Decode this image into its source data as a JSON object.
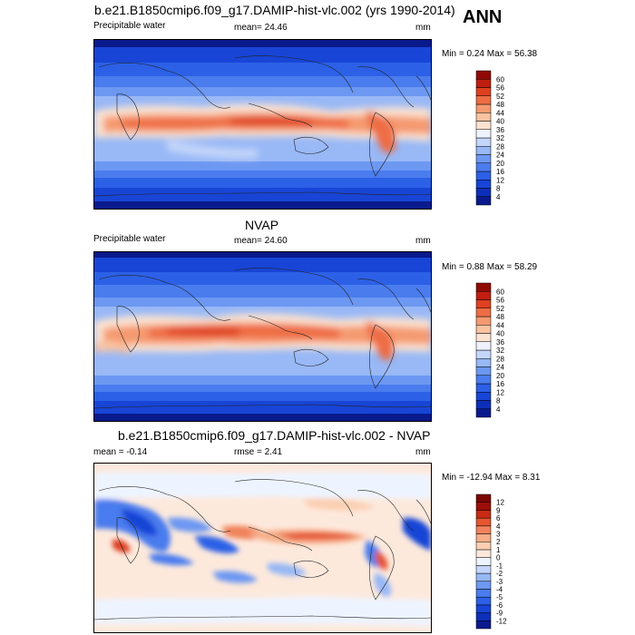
{
  "figure": {
    "season": "ANN"
  },
  "chart_data": [
    {
      "type": "heatmap",
      "title": "b.e21.B1850cmip6.f09_g17.DAMIP-hist-vlc.002 (yrs 1990-2014)",
      "variable": "Precipitable water",
      "units": "mm",
      "mean_label": "mean=  24.46",
      "minmax_label": "Min =   0.24 Max =  56.38",
      "mean": 24.46,
      "min": 0.24,
      "max": 56.38,
      "contour_levels": [
        4,
        8,
        12,
        16,
        20,
        24,
        28,
        32,
        36,
        40,
        44,
        48,
        52,
        56,
        60
      ],
      "colorbar_labels": [
        "4",
        "8",
        "12",
        "16",
        "20",
        "24",
        "28",
        "32",
        "36",
        "40",
        "44",
        "48",
        "52",
        "56",
        "60"
      ],
      "colors": [
        "#0a1a8c",
        "#0d2fb8",
        "#1845d6",
        "#2c60e6",
        "#4a7cee",
        "#6d98f2",
        "#98b8f6",
        "#c4d6fa",
        "#eef2ff",
        "#fbe3d2",
        "#f9c2a0",
        "#f59a70",
        "#ee6d45",
        "#de4020",
        "#c01e10",
        "#8f0a06"
      ]
    },
    {
      "type": "heatmap",
      "title": "NVAP",
      "variable": "Precipitable water",
      "units": "mm",
      "mean_label": "mean=  24.60",
      "minmax_label": "Min =   0.88 Max =  58.29",
      "mean": 24.6,
      "min": 0.88,
      "max": 58.29,
      "contour_levels": [
        4,
        8,
        12,
        16,
        20,
        24,
        28,
        32,
        36,
        40,
        44,
        48,
        52,
        56,
        60
      ],
      "colorbar_labels": [
        "4",
        "8",
        "12",
        "16",
        "20",
        "24",
        "28",
        "32",
        "36",
        "40",
        "44",
        "48",
        "52",
        "56",
        "60"
      ],
      "colors": [
        "#0a1a8c",
        "#0d2fb8",
        "#1845d6",
        "#2c60e6",
        "#4a7cee",
        "#6d98f2",
        "#98b8f6",
        "#c4d6fa",
        "#eef2ff",
        "#fbe3d2",
        "#f9c2a0",
        "#f59a70",
        "#ee6d45",
        "#de4020",
        "#c01e10",
        "#8f0a06"
      ]
    },
    {
      "type": "heatmap",
      "title": "b.e21.B1850cmip6.f09_g17.DAMIP-hist-vlc.002 - NVAP",
      "units": "mm",
      "mean_label": "mean =  -0.14",
      "rmse_label": "rmse =   2.41",
      "minmax_label": "Min = -12.94 Max =   8.31",
      "mean": -0.14,
      "rmse": 2.41,
      "min": -12.94,
      "max": 8.31,
      "contour_levels": [
        -12,
        -9,
        -6,
        -5,
        -4,
        -3,
        -2,
        -1,
        0,
        1,
        2,
        3,
        4,
        6,
        9,
        12
      ],
      "colorbar_labels": [
        "-12",
        "-9",
        "-6",
        "-5",
        "-4",
        "-3",
        "-2",
        "-1",
        "0",
        "1",
        "2",
        "3",
        "4",
        "6",
        "9",
        "12"
      ],
      "colors": [
        "#0a1a8c",
        "#0d2fb8",
        "#1845d6",
        "#2c60e6",
        "#4a7cee",
        "#6d98f2",
        "#98b8f6",
        "#c4d6fa",
        "#eef4ff",
        "#fde9dc",
        "#fbcfb2",
        "#f7ad88",
        "#f0835c",
        "#e55530",
        "#c92a14",
        "#9c0f08",
        "#7a0704"
      ]
    }
  ]
}
